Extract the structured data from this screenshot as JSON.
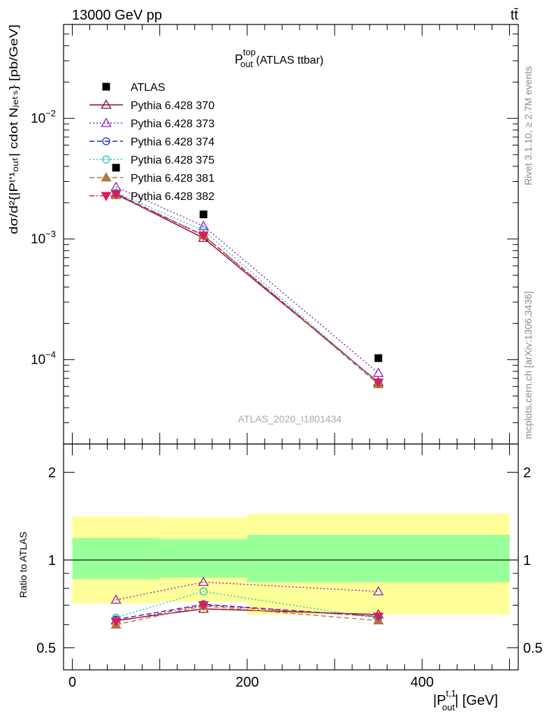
{
  "header": {
    "left": "13000 GeV pp",
    "right": "tt̄"
  },
  "plot_title": {
    "main": "P",
    "sup": "top",
    "sub": "out",
    "suffix": " (ATLAS ttbar)"
  },
  "watermark": "ATLAS_2020_I1801434",
  "side_labels": {
    "rivet": "Rivet 3.1.10, ≥ 2.7M events",
    "mcplots": "mcplots.cern.ch [arXiv:1306.3436]"
  },
  "y_label_main": "dσ/d²{|Pᵗʹ¹ₒᵤₜ| cdot Nⱼₑₜₛ} [pb/GeV]",
  "y_label_ratio": "Ratio to ATLAS",
  "x_label": {
    "pre": "|P",
    "sup": "t,1",
    "sub": "out",
    "post": "| [GeV]"
  },
  "main_y_ticks": [
    {
      "base": "10",
      "exp": "−2",
      "value": 0.01
    },
    {
      "base": "10",
      "exp": "−3",
      "value": 0.001
    },
    {
      "base": "10",
      "exp": "−4",
      "value": 0.0001
    }
  ],
  "ratio_y_ticks": [
    "2",
    "1",
    "0.5"
  ],
  "x_ticks": [
    "0",
    "200",
    "400"
  ],
  "chart_data": [
    {
      "type": "line",
      "scale": "log",
      "xlim": [
        -10,
        510
      ],
      "ylim": [
        2e-05,
        0.06
      ],
      "x": [
        50,
        150,
        350
      ],
      "data": {
        "name": "ATLAS",
        "y": [
          0.0039,
          0.0016,
          0.000103
        ]
      },
      "series": [
        {
          "name": "Pythia 6.428 370",
          "color": "#8b0a2a",
          "dash": "",
          "marker": "triangle-open",
          "y": [
            0.00235,
            0.00102,
            6.5e-05
          ]
        },
        {
          "name": "Pythia 6.428 373",
          "color": "#8c1ec8",
          "dash": "2,3",
          "marker": "triangle-open",
          "y": [
            0.0027,
            0.00128,
            7.75e-05
          ]
        },
        {
          "name": "Pythia 6.428 374",
          "color": "#2323d8",
          "dash": "7,4",
          "marker": "circle-open",
          "y": [
            0.00238,
            0.00107,
            6.45e-05
          ]
        },
        {
          "name": "Pythia 6.428 375",
          "color": "#18c8b4",
          "dash": "2,3",
          "marker": "circle-open",
          "y": [
            0.00242,
            0.00118,
            6.38e-05
          ]
        },
        {
          "name": "Pythia 6.428 381",
          "color": "#b5763a",
          "dash": "7,4",
          "marker": "triangle-filled",
          "y": [
            0.00231,
            0.00108,
            6.25e-05
          ]
        },
        {
          "name": "Pythia 6.428 382",
          "color": "#d81e5a",
          "dash": "7,3,2,3",
          "marker": "triangle-down-filled",
          "y": [
            0.00236,
            0.00107,
            6.48e-05
          ]
        }
      ]
    },
    {
      "type": "line",
      "scale": "log",
      "xlim": [
        -10,
        510
      ],
      "ylim": [
        0.42,
        2.5
      ],
      "band_edges": [
        0,
        100,
        200,
        500
      ],
      "band_yellow": [
        [
          0.71,
          1.41
        ],
        [
          0.72,
          1.4
        ],
        [
          0.65,
          1.44
        ]
      ],
      "band_green": [
        [
          0.86,
          1.19
        ],
        [
          0.87,
          1.18
        ],
        [
          0.84,
          1.22
        ]
      ],
      "x": [
        50,
        150,
        350
      ],
      "series": [
        {
          "name": "Pythia 6.428 370",
          "y": [
            0.62,
            0.68,
            0.65
          ]
        },
        {
          "name": "Pythia 6.428 373",
          "y": [
            0.73,
            0.84,
            0.78
          ]
        },
        {
          "name": "Pythia 6.428 374",
          "y": [
            0.625,
            0.705,
            0.64
          ]
        },
        {
          "name": "Pythia 6.428 375",
          "y": [
            0.635,
            0.78,
            0.63
          ]
        },
        {
          "name": "Pythia 6.428 381",
          "y": [
            0.6,
            0.695,
            0.62
          ]
        },
        {
          "name": "Pythia 6.428 382",
          "y": [
            0.615,
            0.7,
            0.64
          ]
        }
      ]
    }
  ]
}
